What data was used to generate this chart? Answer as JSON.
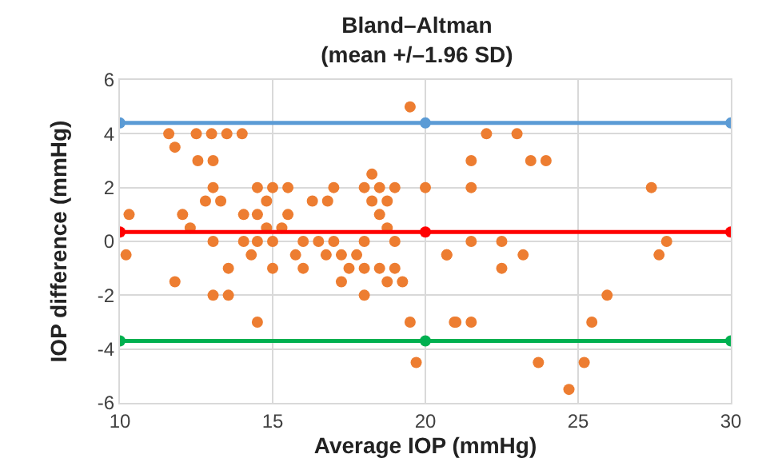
{
  "chart_data": {
    "type": "scatter",
    "title": "Bland–Altman",
    "subtitle": "(mean +/–1.96 SD)",
    "xlabel": "Average IOP (mmHg)",
    "ylabel": "IOP difference (mmHg)",
    "xlim": [
      10,
      30
    ],
    "xticks": [
      10,
      15,
      20,
      25,
      30
    ],
    "ylim": [
      -6,
      6
    ],
    "yticks": [
      -6,
      -4,
      -2,
      0,
      2,
      4,
      6
    ],
    "grid": true,
    "legend": false,
    "marker": "circle",
    "series": [
      {
        "type": "scatter",
        "color": "#ed7d31",
        "x": [
          19.5,
          11.6,
          12.5,
          13.0,
          13.5,
          14.0,
          11.8,
          12.55,
          13.05,
          18.25,
          13.05,
          14.5,
          15.0,
          15.5,
          17.0,
          18.0,
          18.5,
          19.0,
          20.0,
          12.8,
          13.3,
          14.8,
          16.3,
          16.8,
          18.25,
          18.75,
          12.05,
          14.05,
          14.5,
          15.5,
          18.5,
          12.3,
          14.8,
          15.3,
          18.75,
          13.05,
          14.05,
          14.5,
          15.0,
          16.0,
          16.5,
          17.0,
          18.0,
          19.0,
          14.3,
          15.75,
          16.75,
          17.25,
          17.75,
          20.7,
          13.55,
          15.0,
          16.0,
          17.5,
          18.0,
          18.5,
          19.0,
          11.8,
          17.25,
          18.75,
          19.25,
          13.05,
          13.55,
          18.0,
          14.5,
          19.5,
          20.95,
          19.7,
          10.3,
          10.2,
          22.0,
          23.0,
          21.5,
          23.45,
          23.95,
          21.5,
          27.4,
          21.5,
          22.5,
          27.9,
          20.7,
          23.2,
          27.65,
          22.5,
          25.95,
          21.0,
          21.5,
          25.45,
          23.7,
          25.2,
          24.7
        ],
        "values": [
          5.0,
          4.0,
          4.0,
          4.0,
          4.0,
          4.0,
          3.5,
          3.0,
          3.0,
          2.5,
          2.0,
          2.0,
          2.0,
          2.0,
          2.0,
          2.0,
          2.0,
          2.0,
          2.0,
          1.5,
          1.5,
          1.5,
          1.5,
          1.5,
          1.5,
          1.5,
          1.0,
          1.0,
          1.0,
          1.0,
          1.0,
          0.5,
          0.5,
          0.5,
          0.5,
          0.0,
          0.0,
          0.0,
          0.0,
          0.0,
          0.0,
          0.0,
          0.0,
          0.0,
          -0.5,
          -0.5,
          -0.5,
          -0.5,
          -0.5,
          -0.5,
          -1.0,
          -1.0,
          -1.0,
          -1.0,
          -1.0,
          -1.0,
          -1.0,
          -1.5,
          -1.5,
          -1.5,
          -1.5,
          -2.0,
          -2.0,
          -2.0,
          -3.0,
          -3.0,
          -3.0,
          -4.5,
          1.0,
          -0.5,
          4.0,
          4.0,
          3.0,
          3.0,
          3.0,
          2.0,
          2.0,
          0.0,
          0.0,
          0.0,
          -0.5,
          -0.5,
          -0.5,
          -1.0,
          -2.0,
          -3.0,
          -3.0,
          -3.0,
          -4.5,
          -4.5,
          -5.5
        ]
      },
      {
        "type": "line",
        "color": "#5b9bd5",
        "x": [
          10,
          20,
          30
        ],
        "values": [
          4.4,
          4.4,
          4.4
        ]
      },
      {
        "type": "line",
        "color": "#ff0000",
        "x": [
          10,
          20,
          30
        ],
        "values": [
          0.35,
          0.35,
          0.35
        ]
      },
      {
        "type": "line",
        "color": "#00b050",
        "x": [
          10,
          20,
          30
        ],
        "values": [
          -3.7,
          -3.7,
          -3.7
        ]
      }
    ]
  }
}
